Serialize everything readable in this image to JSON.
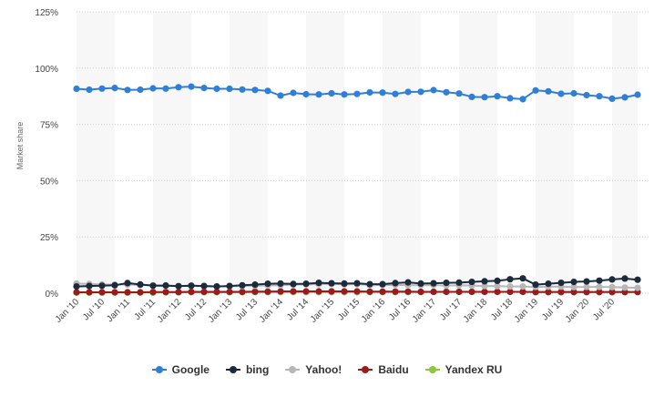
{
  "chart_data": {
    "type": "line",
    "title": "",
    "xlabel": "",
    "ylabel": "Market share",
    "ylim": [
      0,
      125
    ],
    "y_ticks": [
      "0%",
      "25%",
      "50%",
      "75%",
      "100%",
      "125%"
    ],
    "y_tick_values": [
      0,
      25,
      50,
      75,
      100,
      125
    ],
    "x_tick_labels": [
      "Jan '10",
      "Jul '10",
      "Jan '11",
      "Jul '11",
      "Jan '12",
      "Jul '12",
      "Jan '13",
      "Jul '13",
      "Jan '14",
      "Jul '14",
      "Jan '15",
      "Jul '15",
      "Jan '16",
      "Jul '16",
      "Jan '17",
      "Jul '17",
      "Jan '18",
      "Jul '18",
      "Jan '19",
      "Jul '19",
      "Jan '20",
      "Jul '20"
    ],
    "x_start": "Jan '10",
    "x_end": "Oct '20",
    "grid": "horizontal dotted, alternating vertical bands",
    "legend_position": "bottom-center",
    "series": [
      {
        "name": "Google",
        "color": "#2f7ed8",
        "values": [
          90.8,
          90.4,
          90.9,
          91.2,
          90.3,
          90.4,
          91.0,
          90.9,
          91.5,
          91.8,
          91.2,
          90.8,
          90.8,
          90.5,
          90.3,
          89.9,
          87.8,
          89.0,
          88.4,
          88.3,
          88.8,
          88.3,
          88.5,
          89.2,
          89.1,
          88.5,
          89.4,
          89.5,
          90.2,
          89.3,
          88.7,
          87.2,
          87.1,
          87.5,
          86.6,
          86.2,
          90.1,
          89.7,
          88.6,
          88.8,
          88.0,
          87.5,
          86.4,
          87.0,
          88.2
        ]
      },
      {
        "name": "bing",
        "color": "#1b2a3c",
        "values": [
          3.0,
          3.2,
          3.3,
          3.5,
          4.5,
          3.9,
          3.3,
          3.4,
          3.1,
          3.3,
          3.2,
          3.0,
          3.2,
          3.5,
          3.8,
          4.2,
          4.3,
          4.1,
          4.2,
          4.6,
          4.4,
          4.3,
          4.4,
          4.0,
          4.0,
          4.5,
          4.8,
          4.3,
          4.4,
          4.6,
          4.7,
          5.0,
          5.3,
          5.5,
          6.2,
          6.6,
          3.8,
          4.2,
          4.6,
          5.0,
          5.2,
          5.6,
          6.1,
          6.5,
          6.0
        ]
      },
      {
        "name": "Yahoo!",
        "color": "#b7b7b7",
        "values": [
          4.3,
          4.1,
          3.9,
          3.8,
          3.9,
          3.6,
          3.5,
          3.4,
          3.2,
          3.4,
          3.2,
          3.0,
          3.1,
          3.2,
          3.3,
          3.4,
          3.5,
          3.8,
          3.9,
          4.0,
          4.1,
          3.9,
          4.0,
          3.6,
          3.6,
          3.7,
          3.6,
          3.5,
          3.6,
          3.4,
          3.5,
          3.4,
          3.2,
          3.1,
          3.0,
          3.0,
          2.8,
          2.9,
          2.9,
          2.7,
          2.8,
          2.8,
          2.7,
          2.5,
          2.4
        ]
      },
      {
        "name": "Baidu",
        "color": "#9b1b1b",
        "values": [
          0.4,
          0.4,
          0.4,
          0.4,
          0.4,
          0.4,
          0.5,
          0.5,
          0.5,
          0.6,
          0.6,
          0.6,
          0.6,
          0.6,
          0.7,
          0.7,
          0.8,
          0.8,
          0.8,
          0.8,
          0.8,
          0.8,
          0.8,
          0.7,
          0.7,
          0.7,
          0.7,
          0.6,
          0.6,
          0.6,
          0.6,
          0.6,
          0.6,
          0.6,
          0.6,
          0.6,
          0.5,
          0.5,
          0.5,
          0.5,
          0.5,
          0.5,
          0.5,
          0.5,
          0.5
        ]
      },
      {
        "name": "Yandex RU",
        "color": "#8dc63f",
        "values": [
          0.3,
          0.3,
          0.3,
          0.3,
          0.3,
          0.3,
          0.3,
          0.4,
          0.4,
          0.4,
          0.4,
          0.4,
          0.4,
          0.4,
          0.5,
          0.5,
          0.5,
          0.5,
          0.5,
          0.5,
          0.5,
          0.5,
          0.5,
          0.5,
          0.5,
          0.5,
          0.5,
          0.5,
          0.6,
          0.6,
          0.6,
          0.6,
          0.6,
          0.6,
          0.6,
          0.6,
          0.6,
          0.6,
          0.6,
          0.6,
          0.6,
          0.6,
          0.6,
          0.6,
          0.6
        ]
      }
    ]
  }
}
